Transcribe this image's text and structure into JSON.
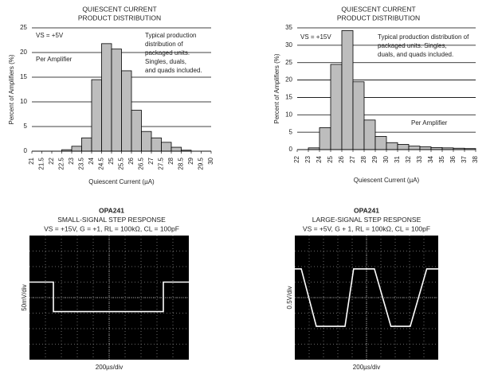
{
  "chart_data": [
    {
      "type": "histogram",
      "title": [
        "QUIESCENT CURRENT",
        "PRODUCT DISTRIBUTION"
      ],
      "x_label": "Quiescent Current (µA)",
      "y_label": "Percent of Amplifiers (%)",
      "bins": [
        22.5,
        23,
        23.5,
        24,
        24.5,
        25,
        25.5,
        26,
        26.5,
        27,
        27.5,
        28,
        28.5,
        29
      ],
      "values": [
        0.3,
        1,
        2.7,
        14.5,
        21.8,
        20.7,
        16.3,
        8.3,
        4,
        2.7,
        1.8,
        0.8,
        0.2
      ],
      "color": "#bdbdbd",
      "xlim": [
        21,
        30
      ],
      "xticks": [
        21,
        21.5,
        22,
        22.5,
        23,
        23.5,
        24,
        24.5,
        25,
        25.5,
        26,
        26.5,
        27,
        27.5,
        28,
        28.5,
        29,
        29.5,
        30
      ],
      "ylim": [
        0,
        25
      ],
      "yticks": [
        0,
        5,
        10,
        15,
        20,
        25
      ],
      "grid": true,
      "annotations": [
        [
          "VS = +5V"
        ],
        [
          "Per Amplifier"
        ],
        [
          "Typical production",
          "distribution of",
          "packaged units.",
          "Singles, duals,",
          "and quads included."
        ]
      ]
    },
    {
      "type": "histogram",
      "title": [
        "QUIESCENT CURRENT",
        "PRODUCT DISTRIBUTION"
      ],
      "x_label": "Quiescent Current (µA)",
      "y_label": "Percent of Amplifiers (%)",
      "bins": [
        23,
        24,
        25,
        26,
        27,
        28,
        29,
        30,
        31,
        32,
        33,
        34,
        35,
        36,
        37,
        38
      ],
      "values": [
        0.5,
        6.3,
        24.5,
        34.2,
        19.5,
        8.5,
        3.8,
        2,
        1.5,
        1,
        0.8,
        0.6,
        0.5,
        0.4,
        0.3
      ],
      "color": "#bdbdbd",
      "xlim": [
        22,
        38
      ],
      "xticks": [
        22,
        23,
        24,
        25,
        26,
        27,
        28,
        29,
        30,
        31,
        32,
        33,
        34,
        35,
        36,
        37,
        38
      ],
      "ylim": [
        0,
        35
      ],
      "yticks": [
        0,
        5,
        10,
        15,
        20,
        25,
        30,
        35
      ],
      "grid": true,
      "annotations": [
        [
          "VS = +15V"
        ],
        [
          "Typical production distribution of",
          "packaged units. Singles,",
          "duals, and quads included."
        ],
        [
          "Per Amplifier"
        ]
      ]
    },
    {
      "type": "scope",
      "title": [
        "OPA241",
        "SMALL-SIGNAL STEP RESPONSE",
        "VS = +15V, G = +1, RL = 100kΩ, CL = 100pF"
      ],
      "x_label": "200µs/div",
      "y_label": "50mV/div",
      "x": [
        0,
        1.5,
        1.5,
        8.4,
        8.4,
        10
      ],
      "values": [
        5,
        5,
        3.1,
        3.1,
        5,
        5
      ],
      "color": "#ffffff",
      "xlim": [
        0,
        10
      ],
      "ylim": [
        0,
        8
      ]
    },
    {
      "type": "scope",
      "title": [
        "OPA241",
        "LARGE-SIGNAL STEP RESPONSE",
        "VS = +5V, G + 1, RL = 100kΩ, CL = 100pF"
      ],
      "x_label": "200µs/div",
      "y_label": "0.5V/div",
      "x": [
        0,
        0.45,
        1.5,
        3.5,
        4.1,
        5.55,
        6.7,
        8.05,
        9.2,
        10
      ],
      "values": [
        5.85,
        5.85,
        2.15,
        2.15,
        5.85,
        5.85,
        2.15,
        2.15,
        5.85,
        5.85
      ],
      "color": "#ffffff",
      "xlim": [
        0,
        10
      ],
      "ylim": [
        0,
        8
      ]
    }
  ]
}
